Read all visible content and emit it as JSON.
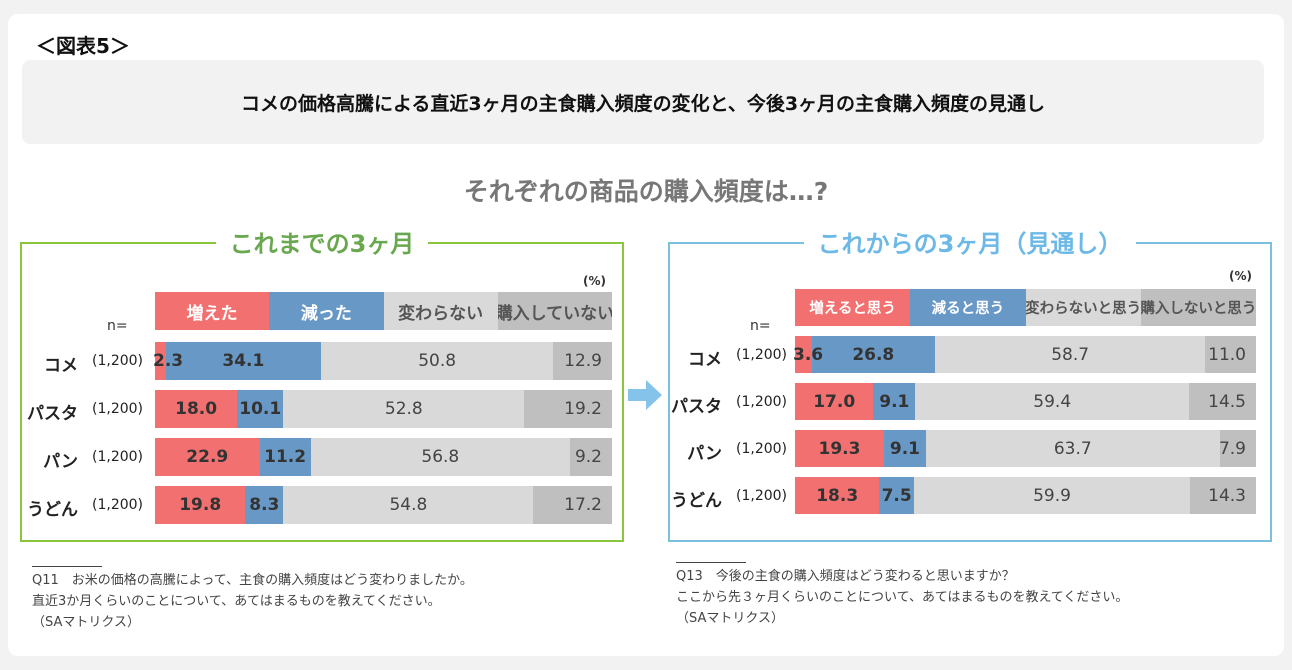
{
  "figure_label": "＜図表5＞",
  "title": "コメの価格高騰による直近3ヶ月の主食購入頻度の変化と、今後3ヶ月の主食購入頻度の見通し",
  "subtitle": "それぞれの商品の購入頻度は…?",
  "colors": {
    "pink": "#f2706f",
    "blue": "#6898c5",
    "light_gray": "#d9d9d9",
    "dark_gray": "#bfbfbf",
    "green": "#8cc63f",
    "sky": "#7cc0e0",
    "arrow": "#86c3ea"
  },
  "chart_data": [
    {
      "type": "bar",
      "orientation": "horizontal-stacked-100",
      "panel_title": "これまでの3ヶ月",
      "unit": "(%)",
      "n_label": "n=",
      "categories": [
        "コメ",
        "パスタ",
        "パン",
        "うどん"
      ],
      "n": [
        "(1,200)",
        "(1,200)",
        "(1,200)",
        "(1,200)"
      ],
      "series": [
        {
          "name": "増えた",
          "values": [
            2.3,
            18.0,
            22.9,
            19.8
          ]
        },
        {
          "name": "減った",
          "values": [
            34.1,
            10.1,
            11.2,
            8.3
          ]
        },
        {
          "name": "変わらない",
          "values": [
            50.8,
            52.8,
            56.8,
            54.8
          ]
        },
        {
          "name": "購入していない",
          "values": [
            12.9,
            19.2,
            9.2,
            17.2
          ]
        }
      ]
    },
    {
      "type": "bar",
      "orientation": "horizontal-stacked-100",
      "panel_title": "これからの3ヶ月（見通し）",
      "unit": "(%)",
      "n_label": "n=",
      "categories": [
        "コメ",
        "パスタ",
        "パン",
        "うどん"
      ],
      "n": [
        "(1,200)",
        "(1,200)",
        "(1,200)",
        "(1,200)"
      ],
      "series": [
        {
          "name": "増えると思う",
          "values": [
            3.6,
            17.0,
            19.3,
            18.3
          ]
        },
        {
          "name": "減ると思う",
          "values": [
            26.8,
            9.1,
            9.1,
            7.5
          ]
        },
        {
          "name": "変わらないと思う",
          "values": [
            58.7,
            59.4,
            63.7,
            59.9
          ]
        },
        {
          "name": "購入しないと思う",
          "values": [
            11.0,
            14.5,
            7.9,
            14.3
          ]
        }
      ]
    }
  ],
  "notes": [
    {
      "line1": "Q11　お米の価格の高騰によって、主食の購入頻度はどう変わりましたか。",
      "line2": "直近3か月くらいのことについて、あてはまるものを教えてください。",
      "line3": "（SAマトリクス）"
    },
    {
      "line1": "Q13　今後の主食の購入頻度はどう変わると思いますか？",
      "line2": "ここから先３ヶ月くらいのことについて、あてはまるものを教えてください。",
      "line3": "（SAマトリクス）"
    }
  ]
}
